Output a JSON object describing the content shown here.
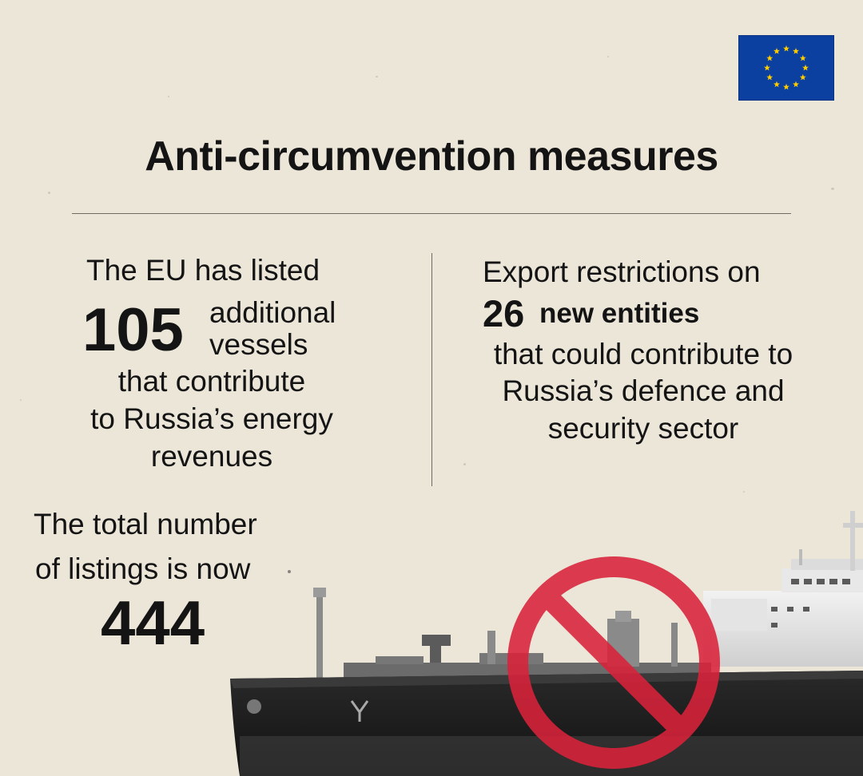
{
  "title": "Anti-circumvention measures",
  "left_block": {
    "line1": "The EU has listed",
    "number": "105",
    "word1": "additional",
    "word2": "vessels",
    "line3": "that contribute",
    "line4": "to Russia’s energy",
    "line5": "revenues"
  },
  "right_block": {
    "line1": "Export restrictions on",
    "number": "26",
    "emphasis": "new entities",
    "line3": "that could contribute to",
    "line4": "Russia’s defence and",
    "line5": "security sector"
  },
  "total_block": {
    "line1": "The total number",
    "line2": "of listings is now",
    "number": "444"
  },
  "colors": {
    "background": "#ece6d9",
    "eu_blue": "#0b3fa0",
    "eu_gold": "#ffcc00",
    "prohibition_red": "#d9223a",
    "text": "#141414"
  },
  "icons": {
    "flag": "eu-flag-icon",
    "prohibition": "prohibition-icon"
  }
}
